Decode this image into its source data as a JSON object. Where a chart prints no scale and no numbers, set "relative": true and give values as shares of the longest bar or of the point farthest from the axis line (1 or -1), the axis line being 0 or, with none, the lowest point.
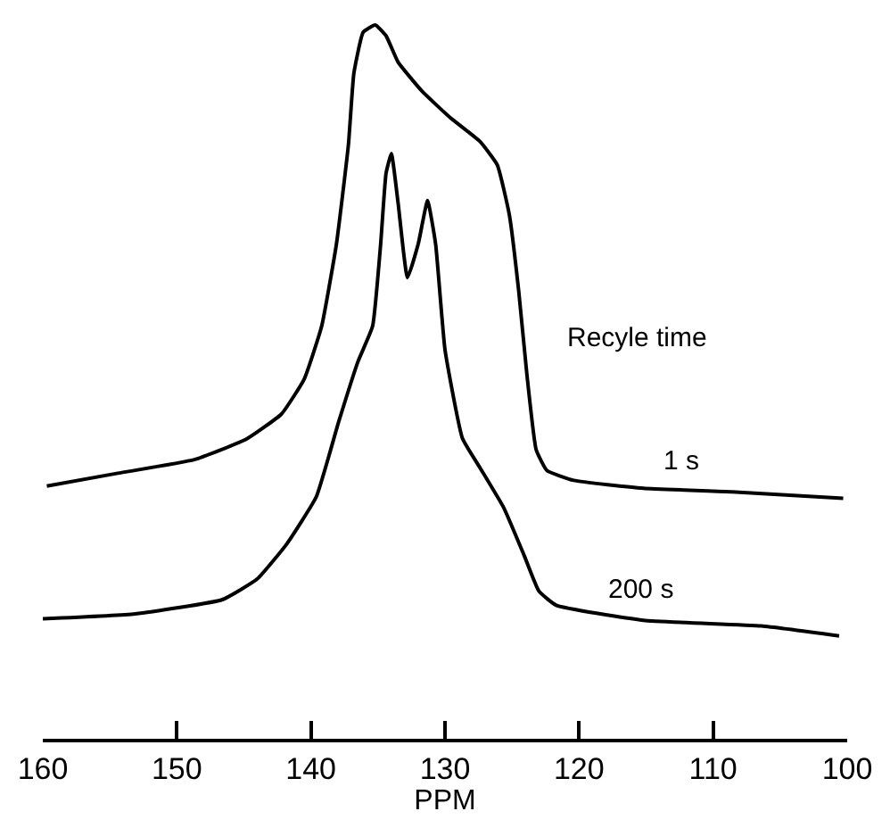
{
  "chart_data": {
    "type": "line",
    "relative": true,
    "xlabel": "PPM",
    "legend_title": "Recyle time",
    "xlim": [
      160,
      100
    ],
    "xticks": [
      160,
      150,
      140,
      130,
      120,
      110,
      100
    ],
    "legend": false,
    "marker": "none",
    "line_style": "solid",
    "series": [
      {
        "name": "1 s",
        "color": "#000000",
        "x": [
          159.7,
          154.4,
          148.7,
          144.8,
          142.2,
          140.5,
          139.2,
          138.1,
          137.2,
          136.8,
          136.1,
          135.2,
          134.4,
          133.5,
          131.7,
          129.6,
          127.4,
          126.1,
          125.2,
          124.5,
          123.9,
          123.2,
          122.4,
          120.4,
          115.2,
          108.6,
          100.3
        ],
        "values": [
          0.354,
          0.372,
          0.391,
          0.42,
          0.455,
          0.504,
          0.578,
          0.693,
          0.833,
          0.932,
          0.99,
          1.0,
          0.985,
          0.948,
          0.907,
          0.87,
          0.837,
          0.804,
          0.734,
          0.627,
          0.512,
          0.405,
          0.376,
          0.362,
          0.351,
          0.346,
          0.337
        ]
      },
      {
        "name": "200 s",
        "color": "#000000",
        "x": [
          160.0,
          153.1,
          146.6,
          144.0,
          141.8,
          139.6,
          137.9,
          136.5,
          135.4,
          134.8,
          134.4,
          134.0,
          133.5,
          132.8,
          132.0,
          131.3,
          130.7,
          130.0,
          128.7,
          127.4,
          125.6,
          124.1,
          123.0,
          121.7,
          115.2,
          106.4,
          100.6
        ],
        "values": [
          0.168,
          0.175,
          0.195,
          0.224,
          0.273,
          0.339,
          0.446,
          0.528,
          0.578,
          0.693,
          0.792,
          0.82,
          0.751,
          0.646,
          0.693,
          0.754,
          0.693,
          0.545,
          0.421,
          0.38,
          0.323,
          0.257,
          0.207,
          0.187,
          0.166,
          0.158,
          0.144
        ]
      }
    ]
  }
}
